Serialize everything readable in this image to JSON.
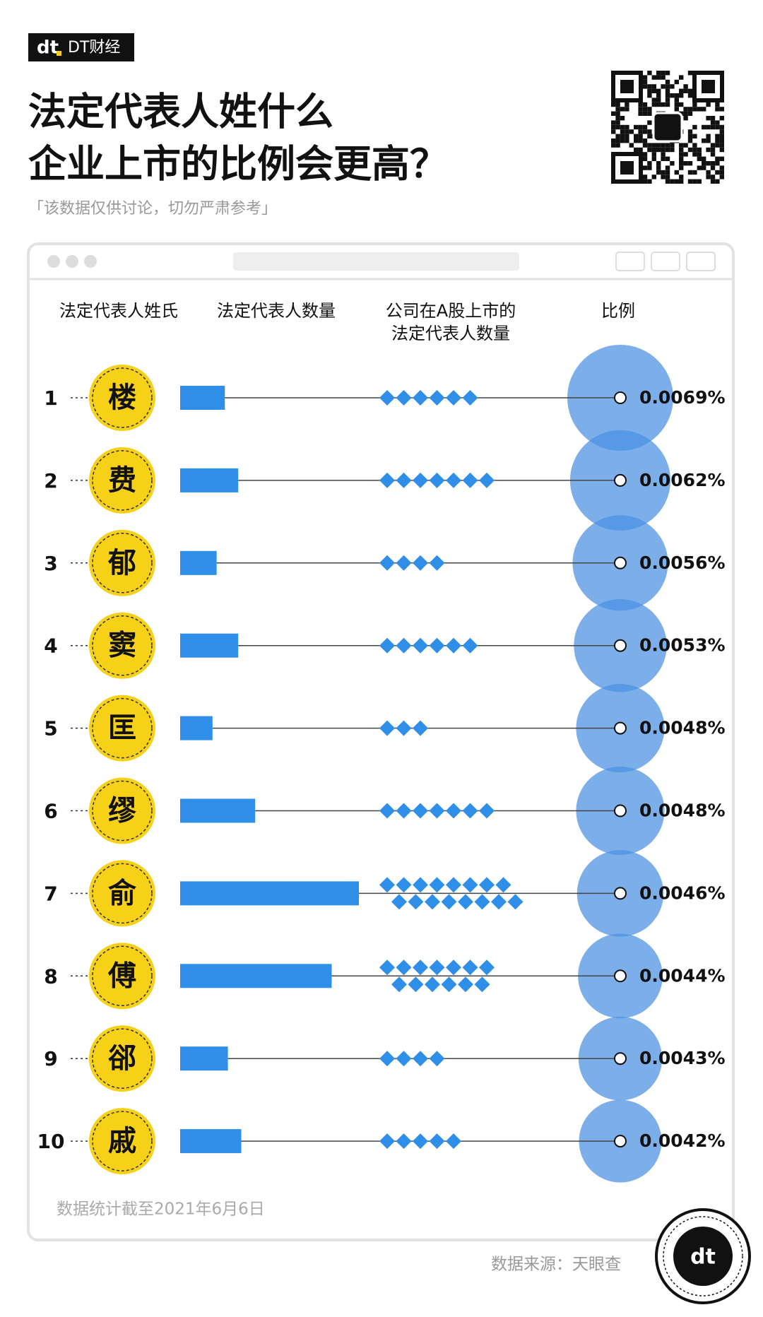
{
  "chart_data": {
    "type": "bar",
    "brand": "DT财经",
    "title": [
      "法定代表人姓什么",
      "企业上市的比例会更高？"
    ],
    "subtitle": "「该数据仅供讨论，切勿严肃参考」",
    "category_header": "法定代表人姓氏",
    "ranks": [
      1,
      2,
      3,
      4,
      5,
      6,
      7,
      8,
      9,
      10
    ],
    "categories": [
      "楼",
      "费",
      "郁",
      "窦",
      "匡",
      "缪",
      "俞",
      "傅",
      "郤",
      "戚"
    ],
    "series": [
      {
        "name": "法定代表人数量",
        "color": "#2f8ee8",
        "values": [
          87000,
          113000,
          71000,
          113000,
          63000,
          146000,
          348000,
          295000,
          93000,
          119000
        ]
      },
      {
        "name": "公司在A股上市的法定代表人数量",
        "color": "#2f8ee8",
        "values": [
          6,
          7,
          4,
          6,
          3,
          7,
          16,
          13,
          4,
          5
        ]
      },
      {
        "name": "比例",
        "color": "#4a90e2",
        "values": [
          0.0069,
          0.0062,
          0.0056,
          0.0053,
          0.0048,
          0.0048,
          0.0046,
          0.0044,
          0.0043,
          0.0042
        ],
        "value_labels": [
          "0.0069%",
          "0.0062%",
          "0.0056%",
          "0.0053%",
          "0.0048%",
          "0.0048%",
          "0.0046%",
          "0.0044%",
          "0.0043%",
          "0.0042%"
        ]
      }
    ],
    "note": "数据统计截至2021年6月6日",
    "source": "数据来源：天眼查"
  }
}
